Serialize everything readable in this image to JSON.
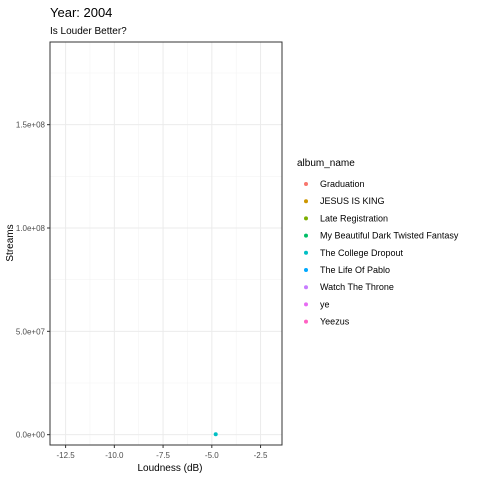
{
  "chart_data": {
    "type": "scatter",
    "title": "Year: 2004",
    "subtitle": "Is Louder Better?",
    "xlabel": "Loudness (dB)",
    "ylabel": "Streams",
    "xlim": [
      -13.3,
      -1.4
    ],
    "ylim": [
      -5000000,
      190000000
    ],
    "x_ticks": [
      -12.5,
      -10.0,
      -7.5,
      -5.0,
      -2.5
    ],
    "x_tick_labels": [
      "-12.5",
      "-10.0",
      "-7.5",
      "-5.0",
      "-2.5"
    ],
    "y_ticks": [
      0,
      50000000,
      100000000,
      150000000
    ],
    "y_tick_labels": [
      "0.0e+00",
      "5.0e+07",
      "1.0e+08",
      "1.5e+08"
    ],
    "grid": true,
    "legend_position": "right",
    "legend": {
      "title": "album_name",
      "entries": [
        {
          "label": "Graduation",
          "color": "#F8766D"
        },
        {
          "label": "JESUS IS KING",
          "color": "#CD9600"
        },
        {
          "label": "Late Registration",
          "color": "#7CAE00"
        },
        {
          "label": "My Beautiful Dark Twisted Fantasy",
          "color": "#00BE67"
        },
        {
          "label": "The College Dropout",
          "color": "#00BFC4"
        },
        {
          "label": "The Life Of Pablo",
          "color": "#00A9FF"
        },
        {
          "label": "Watch The Throne",
          "color": "#C77CFF"
        },
        {
          "label": "ye",
          "color": "#E76BF3"
        },
        {
          "label": "Yeezus",
          "color": "#FF61C3"
        }
      ]
    },
    "points": [
      {
        "x": -4.8,
        "y": 200000,
        "series": "The College Dropout",
        "color": "#00BFC4"
      }
    ]
  }
}
